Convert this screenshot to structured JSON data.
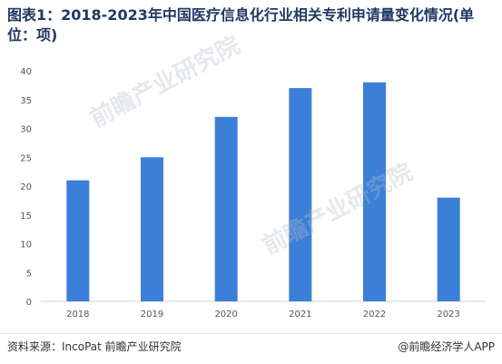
{
  "title": "图表1：2018-2023年中国医疗信息化行业相关专利申请量变化情况(单位：项)",
  "source": "资料来源：IncoPat 前瞻产业研究院",
  "credit": "@前瞻经济学人APP",
  "watermark": {
    "text_a": "前瞻产业研究院",
    "text_b": "前瞻产业研究院"
  },
  "colors": {
    "bar": "#3c7fd8",
    "title": "#1f3864"
  },
  "chart_data": {
    "type": "bar",
    "title": "图表1：2018-2023年中国医疗信息化行业相关专利申请量变化情况(单位：项)",
    "xlabel": "",
    "ylabel": "",
    "categories": [
      "2018",
      "2019",
      "2020",
      "2021",
      "2022",
      "2023"
    ],
    "values": [
      21,
      25,
      32,
      37,
      38,
      18
    ],
    "ylim": [
      0,
      40
    ],
    "yticks": [
      0,
      5,
      10,
      15,
      20,
      25,
      30,
      35,
      40
    ],
    "grid": false,
    "legend": "none"
  }
}
